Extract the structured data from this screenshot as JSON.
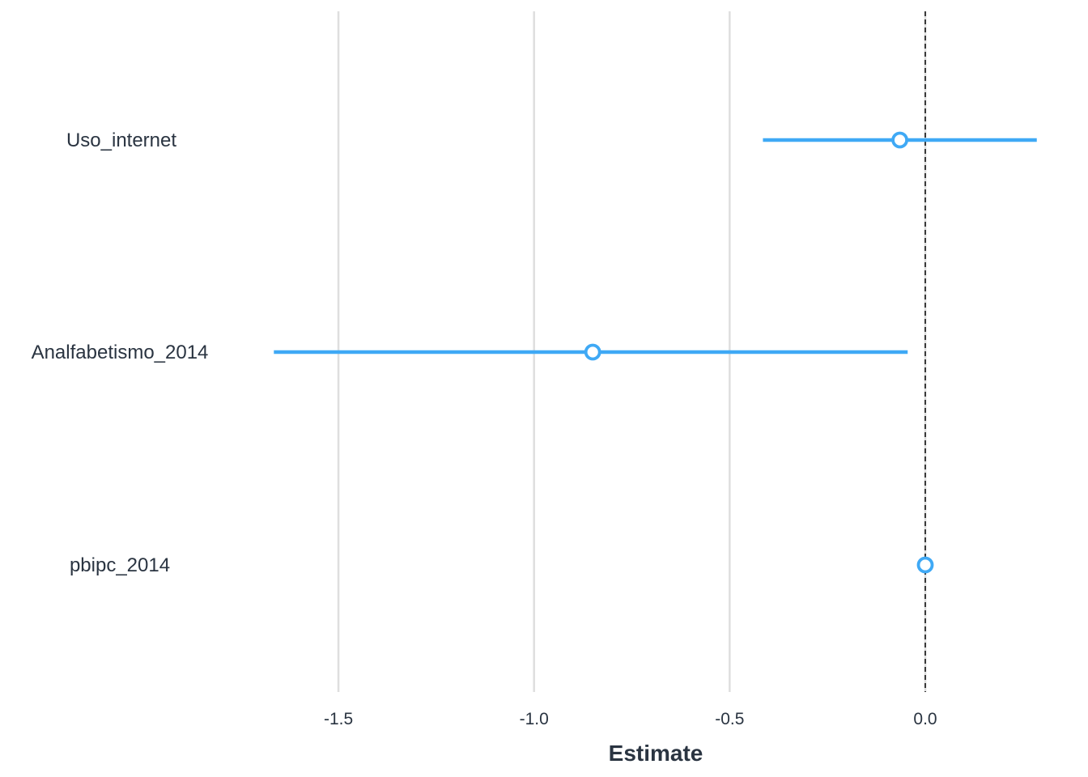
{
  "chart_data": {
    "type": "scatter",
    "subtype": "coefficient-plot",
    "title": "",
    "xlabel": "Estimate",
    "ylabel": "",
    "xlim": [
      -2.0,
      0.3
    ],
    "x_ticks": [
      -1.5,
      -1.0,
      -0.5,
      0.0
    ],
    "x_tick_labels": [
      "-1.5",
      "-1.0",
      "-0.5",
      "0.0"
    ],
    "reference_line": 0.0,
    "grid": "vertical-major",
    "categories": [
      "Uso_internet",
      "Analfabetismo_2014",
      "pbipc_2014"
    ],
    "estimates": [
      -0.065,
      -0.85,
      0.0
    ],
    "conf_low": [
      -0.415,
      -1.665,
      0.0
    ],
    "conf_high": [
      0.285,
      -0.045,
      0.0
    ],
    "color": "#3fa9f5"
  }
}
